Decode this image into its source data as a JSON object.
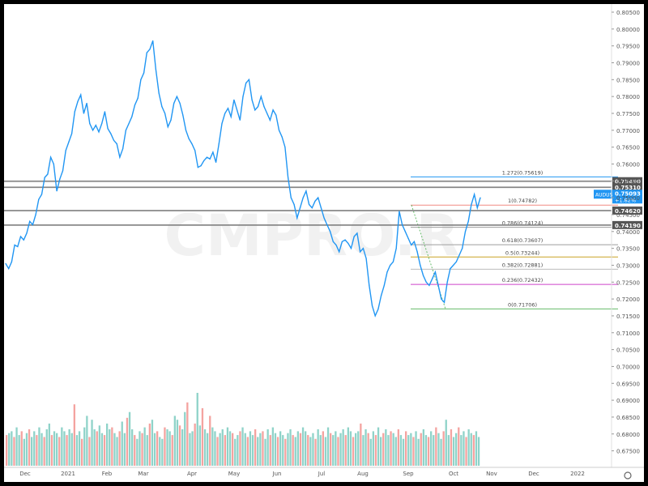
{
  "watermark": "CMPRO.R",
  "chart_data": {
    "type": "line",
    "symbol": "AUDUSD",
    "last_price": "0.75093",
    "change": "+1.82%",
    "ylim": [
      0.6725,
      0.805
    ],
    "y_ticks": [
      "0.80500",
      "0.80000",
      "0.79500",
      "0.79000",
      "0.78500",
      "0.78000",
      "0.77500",
      "0.77000",
      "0.76500",
      "0.76000",
      "0.75500",
      "0.75000",
      "0.74500",
      "0.74000",
      "0.73500",
      "0.73000",
      "0.72500",
      "0.72000",
      "0.71500",
      "0.71000",
      "0.70500",
      "0.70000",
      "0.69500",
      "0.69000",
      "0.68500",
      "0.68000",
      "0.67500"
    ],
    "x_ticks": [
      "Dec",
      "2021",
      "Feb",
      "Mar",
      "Apr",
      "May",
      "Jun",
      "Jul",
      "Aug",
      "Sep",
      "Oct",
      "Nov",
      "Dec",
      "2022"
    ],
    "horizontal_levels": [
      {
        "label": "0.75490",
        "value": 0.7549
      },
      {
        "label": "0.75310",
        "value": 0.7531
      },
      {
        "label": "0.74620",
        "value": 0.7462
      },
      {
        "label": "0.74190",
        "value": 0.7419
      }
    ],
    "fibonacci": [
      {
        "label": "1.272(0.75619)",
        "value": 0.75619,
        "color": "#2196f3"
      },
      {
        "label": "1(0.74782)",
        "value": 0.74782,
        "color": "#f28b82"
      },
      {
        "label": "0.786(0.74124)",
        "value": 0.74124,
        "color": "#9e9e9e"
      },
      {
        "label": "0.618(0.73607)",
        "value": 0.73607,
        "color": "#9e9e9e"
      },
      {
        "label": "0.5(0.73244)",
        "value": 0.73244,
        "color": "#c9a227"
      },
      {
        "label": "0.382(0.72881)",
        "value": 0.72881,
        "color": "#bdbdbd"
      },
      {
        "label": "0.236(0.72432)",
        "value": 0.72432,
        "color": "#ce43c9"
      },
      {
        "label": "0(0.71706)",
        "value": 0.71706,
        "color": "#66bb6a"
      }
    ],
    "series": [
      {
        "values": [
          0.7305,
          0.729,
          0.731,
          0.736,
          0.7355,
          0.7385,
          0.7375,
          0.7395,
          0.743,
          0.742,
          0.745,
          0.7495,
          0.751,
          0.756,
          0.757,
          0.762,
          0.76,
          0.752,
          0.7555,
          0.758,
          0.764,
          0.7665,
          0.769,
          0.7755,
          0.7785,
          0.7805,
          0.775,
          0.778,
          0.772,
          0.77,
          0.7715,
          0.7695,
          0.772,
          0.7755,
          0.7705,
          0.769,
          0.767,
          0.766,
          0.762,
          0.7645,
          0.77,
          0.772,
          0.774,
          0.7775,
          0.7795,
          0.785,
          0.787,
          0.793,
          0.794,
          0.7965,
          0.788,
          0.781,
          0.777,
          0.775,
          0.771,
          0.773,
          0.778,
          0.78,
          0.778,
          0.7745,
          0.77,
          0.7675,
          0.766,
          0.764,
          0.759,
          0.7595,
          0.761,
          0.762,
          0.7615,
          0.7635,
          0.7605,
          0.766,
          0.772,
          0.775,
          0.7765,
          0.774,
          0.779,
          0.776,
          0.773,
          0.78,
          0.784,
          0.785,
          0.779,
          0.776,
          0.777,
          0.78,
          0.777,
          0.775,
          0.773,
          0.776,
          0.7745,
          0.77,
          0.768,
          0.765,
          0.756,
          0.75,
          0.748,
          0.744,
          0.747,
          0.75,
          0.752,
          0.748,
          0.747,
          0.749,
          0.75,
          0.747,
          0.744,
          0.742,
          0.74,
          0.737,
          0.736,
          0.734,
          0.737,
          0.7375,
          0.7365,
          0.735,
          0.7385,
          0.7395,
          0.734,
          0.735,
          0.732,
          0.724,
          0.718,
          0.715,
          0.717,
          0.721,
          0.724,
          0.728,
          0.73,
          0.731,
          0.735,
          0.746,
          0.742,
          0.74,
          0.738,
          0.736,
          0.737,
          0.734,
          0.73,
          0.727,
          0.725,
          0.724,
          0.726,
          0.728,
          0.724,
          0.72,
          0.719,
          0.725,
          0.729,
          0.73,
          0.731,
          0.733,
          0.735,
          0.74,
          0.743,
          0.748,
          0.751,
          0.747,
          0.75
        ]
      }
    ],
    "volume": [
      16,
      17,
      18,
      15,
      20,
      16,
      18,
      14,
      17,
      19,
      15,
      18,
      16,
      20,
      17,
      15,
      19,
      22,
      16,
      18,
      17,
      15,
      20,
      18,
      16,
      19,
      17,
      32,
      16,
      18,
      14,
      20,
      26,
      15,
      24,
      19,
      18,
      21,
      17,
      16,
      22,
      19,
      20,
      17,
      15,
      18,
      23,
      17,
      25,
      28,
      19,
      16,
      14,
      18,
      17,
      20,
      16,
      22,
      24,
      17,
      18,
      15,
      14,
      20,
      19,
      18,
      16,
      26,
      24,
      21,
      19,
      28,
      33,
      17,
      18,
      22,
      38,
      21,
      30,
      19,
      17,
      26,
      20,
      18,
      15,
      17,
      19,
      16,
      20,
      18,
      17,
      14,
      16,
      18,
      20,
      17,
      15,
      18,
      16,
      19,
      15,
      17,
      18,
      14,
      19,
      16,
      20,
      17,
      15,
      18,
      16,
      14,
      17,
      19,
      16,
      15,
      18,
      17,
      20,
      18,
      16,
      15,
      17,
      14,
      19,
      16,
      18,
      15,
      20,
      17,
      16,
      18,
      15,
      17,
      19,
      16,
      20,
      18,
      15,
      17,
      18,
      22,
      16,
      19,
      17,
      14,
      18,
      16,
      20,
      15,
      17,
      19,
      16,
      18,
      17,
      15,
      19,
      16,
      14,
      18,
      16,
      17,
      15,
      18,
      14,
      17,
      19,
      16,
      15,
      18,
      16,
      20,
      17,
      14,
      18,
      24,
      16,
      19,
      15,
      17,
      20,
      16,
      18,
      15,
      19,
      17,
      16,
      18,
      15
    ]
  }
}
